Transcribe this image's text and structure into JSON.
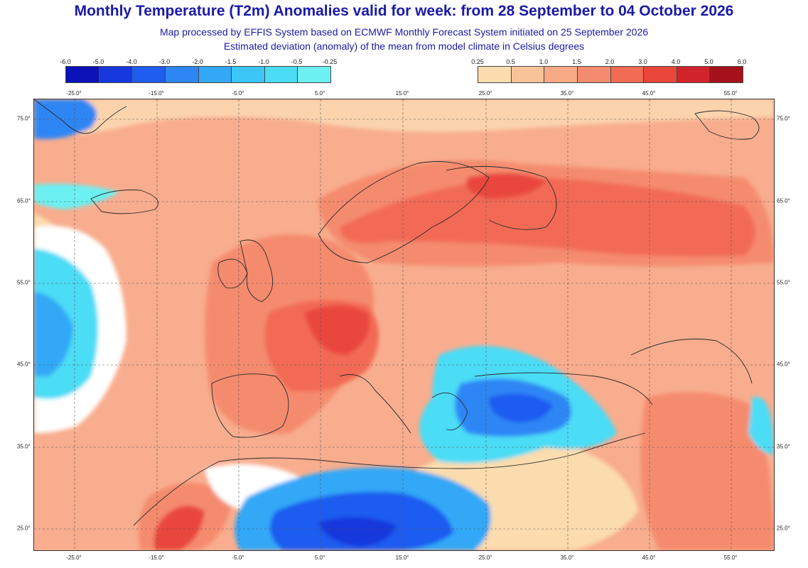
{
  "header": {
    "title": "Monthly Temperature (T2m) Anomalies valid for week: from 28 September to 04 October 2026",
    "subtitle1": "Map processed by EFFIS System based on ECMWF Monthly Forecast System initiated on 25 September 2026",
    "subtitle2": "Estimated deviation (anomaly) of the mean from model climate in Celsius degrees"
  },
  "colorbar": {
    "cold": {
      "labels": [
        "-6.0",
        "-5.0",
        "-4.0",
        "-3.0",
        "-2.0",
        "-1.5",
        "-1.0",
        "-0.5",
        "-0.25"
      ],
      "colors": [
        "#0a12b8",
        "#1638dc",
        "#1f5cf0",
        "#2e86f5",
        "#33a8f7",
        "#3cc6f8",
        "#4bdcf6",
        "#6cf0f2"
      ]
    },
    "warm": {
      "labels": [
        "0.25",
        "0.5",
        "1.0",
        "1.5",
        "2.0",
        "3.0",
        "4.0",
        "5.0",
        "6.0"
      ],
      "colors": [
        "#fbdcae",
        "#f9c39a",
        "#f8a986",
        "#f58b6e",
        "#f26b55",
        "#e9463c",
        "#d1242a",
        "#a5111b"
      ]
    }
  },
  "axes": {
    "lon_labels": [
      "-25.0°",
      "-15.0°",
      "-5.0°",
      "5.0°",
      "15.0°",
      "25.0°",
      "35.0°",
      "45.0°",
      "55.0°"
    ],
    "lat_labels": [
      "75.0°",
      "65.0°",
      "55.0°",
      "45.0°",
      "35.0°",
      "25.0°"
    ]
  },
  "map": {
    "background_color": "#f8ad8e",
    "no_anomaly_color": "#ffffff"
  }
}
